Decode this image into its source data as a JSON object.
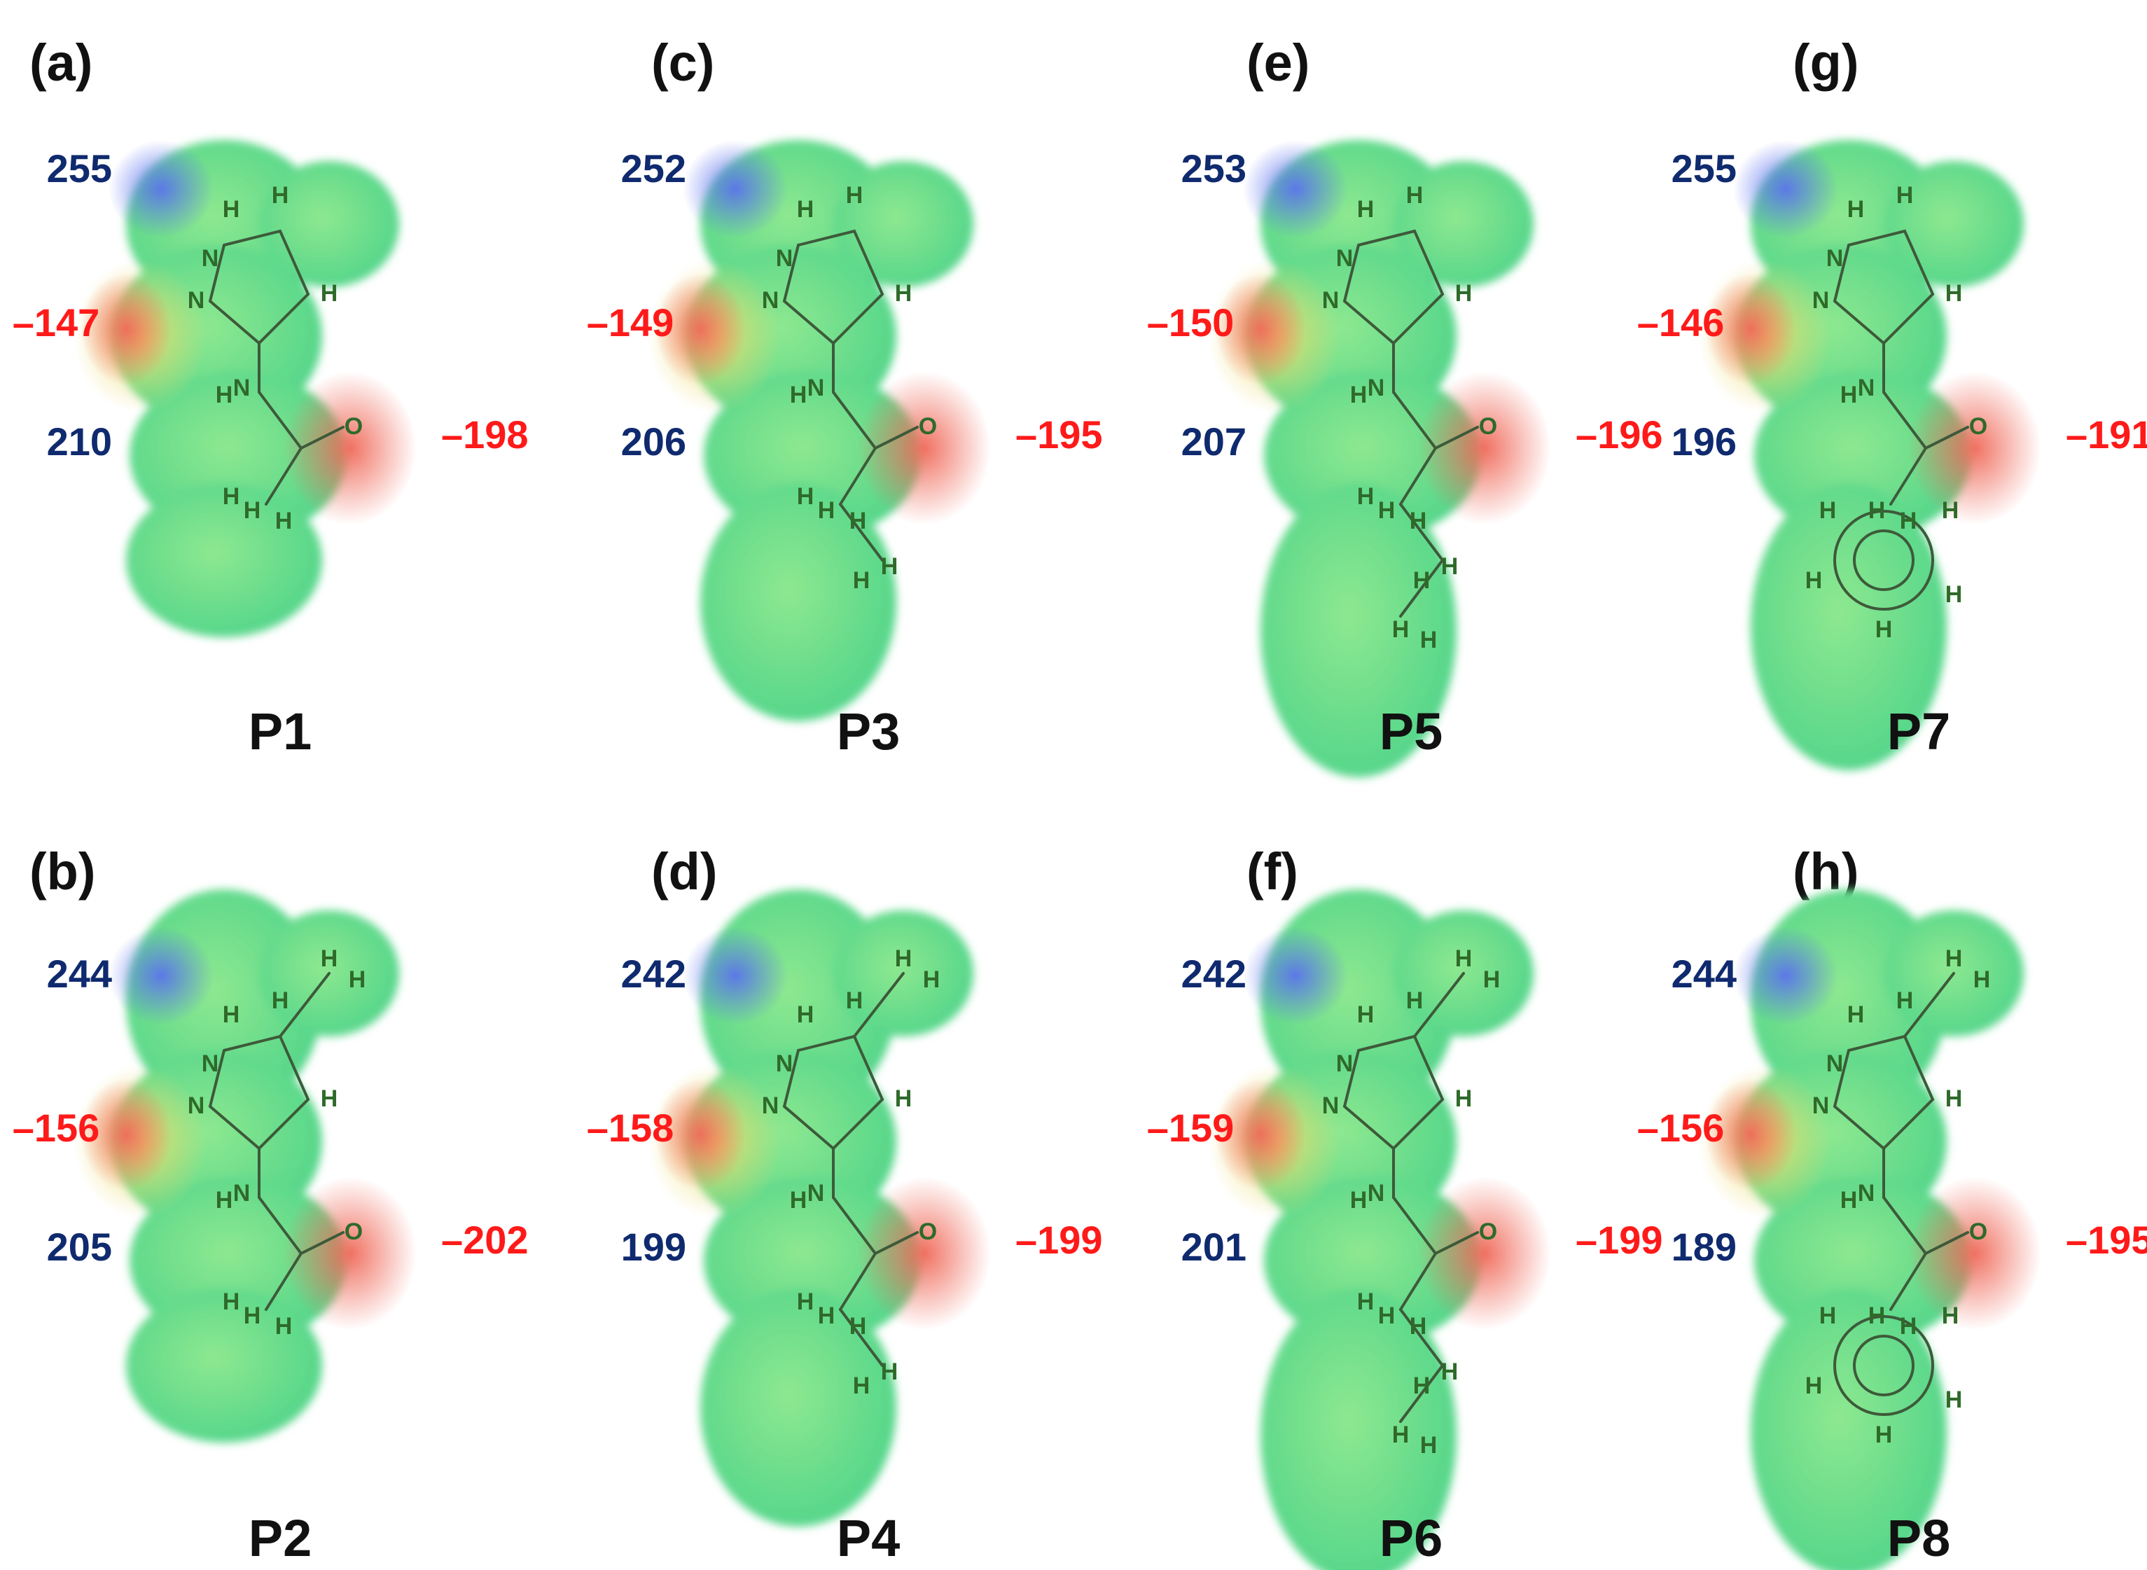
{
  "colors": {
    "positive_label": "#0f2a6e",
    "negative_label": "#ff1a1a",
    "surface_base": "#5fe08a",
    "surface_positive": "#5a6ef0",
    "surface_negative": "#f06a5a",
    "surface_neutral": "#e8e070"
  },
  "panels": [
    {
      "letter": "(a)",
      "compound": "P1",
      "variant": "acetyl",
      "methyl": false,
      "v_nh_top": "255",
      "v_n": "–147",
      "v_nh_amide": "210",
      "v_o": "–198"
    },
    {
      "letter": "(c)",
      "compound": "P3",
      "variant": "propyl",
      "methyl": false,
      "v_nh_top": "252",
      "v_n": "–149",
      "v_nh_amide": "206",
      "v_o": "–195"
    },
    {
      "letter": "(e)",
      "compound": "P5",
      "variant": "butyl",
      "methyl": false,
      "v_nh_top": "253",
      "v_n": "–150",
      "v_nh_amide": "207",
      "v_o": "–196"
    },
    {
      "letter": "(g)",
      "compound": "P7",
      "variant": "benzoyl",
      "methyl": false,
      "v_nh_top": "255",
      "v_n": "–146",
      "v_nh_amide": "196",
      "v_o": "–191"
    },
    {
      "letter": "(b)",
      "compound": "P2",
      "variant": "acetyl",
      "methyl": true,
      "v_nh_top": "244",
      "v_n": "–156",
      "v_nh_amide": "205",
      "v_o": "–202"
    },
    {
      "letter": "(d)",
      "compound": "P4",
      "variant": "propyl",
      "methyl": true,
      "v_nh_top": "242",
      "v_n": "–158",
      "v_nh_amide": "199",
      "v_o": "–199"
    },
    {
      "letter": "(f)",
      "compound": "P6",
      "variant": "butyl",
      "methyl": true,
      "v_nh_top": "242",
      "v_n": "–159",
      "v_nh_amide": "201",
      "v_o": "–199"
    },
    {
      "letter": "(h)",
      "compound": "P8",
      "variant": "benzoyl",
      "methyl": true,
      "v_nh_top": "244",
      "v_n": "–156",
      "v_nh_amide": "189",
      "v_o": "–195"
    }
  ]
}
